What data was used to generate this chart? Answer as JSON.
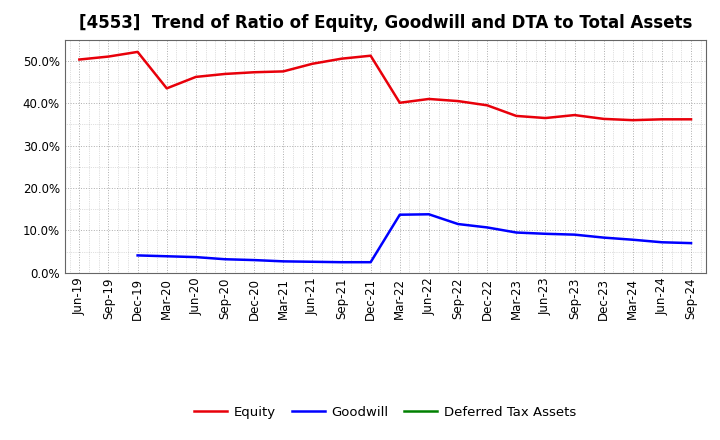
{
  "title": "[4553]  Trend of Ratio of Equity, Goodwill and DTA to Total Assets",
  "x_labels": [
    "Jun-19",
    "Sep-19",
    "Dec-19",
    "Mar-20",
    "Jun-20",
    "Sep-20",
    "Dec-20",
    "Mar-21",
    "Jun-21",
    "Sep-21",
    "Dec-21",
    "Mar-22",
    "Jun-22",
    "Sep-22",
    "Dec-22",
    "Mar-23",
    "Jun-23",
    "Sep-23",
    "Dec-23",
    "Mar-24",
    "Jun-24",
    "Sep-24"
  ],
  "equity": [
    50.3,
    51.0,
    52.1,
    43.5,
    46.2,
    46.9,
    47.3,
    47.5,
    49.3,
    50.5,
    51.2,
    40.1,
    41.0,
    40.5,
    39.5,
    37.0,
    36.5,
    37.2,
    36.3,
    36.0,
    36.2,
    36.2
  ],
  "goodwill": [
    null,
    null,
    4.1,
    3.9,
    3.7,
    3.2,
    3.0,
    2.7,
    2.6,
    2.5,
    2.5,
    13.7,
    13.8,
    11.5,
    10.7,
    9.5,
    9.2,
    9.0,
    8.3,
    7.8,
    7.2,
    7.0
  ],
  "dta": [
    null,
    null,
    null,
    null,
    null,
    null,
    null,
    null,
    null,
    null,
    null,
    null,
    null,
    null,
    null,
    null,
    null,
    null,
    null,
    null,
    null,
    null
  ],
  "equity_color": "#e8000a",
  "goodwill_color": "#0000ff",
  "dta_color": "#008000",
  "background_color": "#ffffff",
  "plot_bg_color": "#ffffff",
  "grid_color": "#999999",
  "ylim": [
    0,
    55
  ],
  "yticks": [
    0,
    10,
    20,
    30,
    40,
    50
  ],
  "legend_labels": [
    "Equity",
    "Goodwill",
    "Deferred Tax Assets"
  ],
  "title_fontsize": 12,
  "tick_fontsize": 8.5
}
